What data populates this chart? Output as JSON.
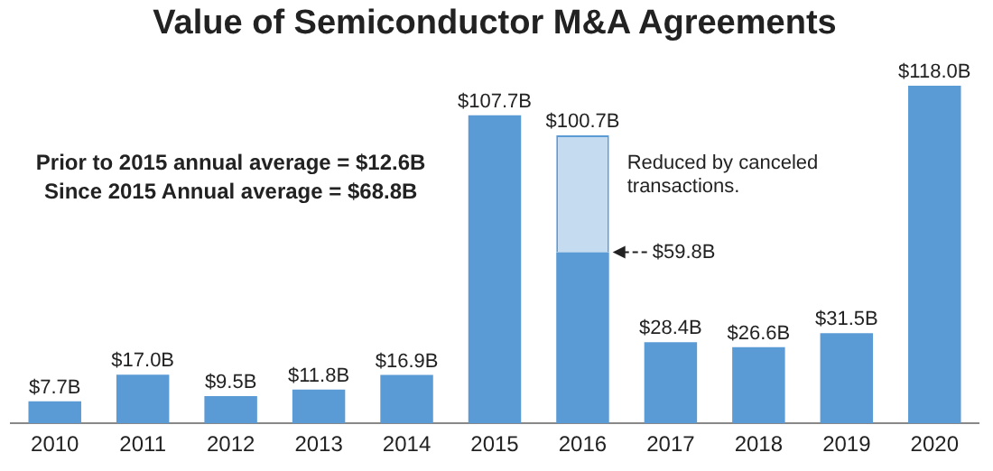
{
  "chart_data": {
    "type": "bar",
    "title": "Value of Semiconductor M&A Agreements",
    "stacked": true,
    "categories": [
      "2010",
      "2011",
      "2012",
      "2013",
      "2014",
      "2015",
      "2016",
      "2017",
      "2018",
      "2019",
      "2020"
    ],
    "series": [
      {
        "color": "#5b9bd5",
        "values": [
          7.7,
          17.0,
          9.5,
          11.8,
          16.9,
          107.7,
          59.8,
          28.4,
          26.6,
          31.5,
          118.0
        ],
        "value_labels": [
          "$7.7B",
          "$17.0B",
          "$9.5B",
          "$11.8B",
          "$16.9B",
          "$107.7B",
          "$59.8B",
          "$28.4B",
          "$26.6B",
          "$31.5B",
          "$118.0B"
        ]
      },
      {
        "color": "#c5dcf0",
        "values": [
          null,
          null,
          null,
          null,
          null,
          null,
          40.9,
          null,
          null,
          null,
          null
        ]
      }
    ],
    "totals": [
      null,
      null,
      null,
      null,
      null,
      null,
      "$100.7B",
      null,
      null,
      null,
      null
    ],
    "annotations": [
      "Prior to 2015 annual average = $12.6B",
      "Since 2015 Annual average = $68.8B",
      {
        "text": "Reduced by canceled transactions.",
        "x": "2016",
        "y": 100.7
      }
    ],
    "legend": false,
    "grid": false
  }
}
